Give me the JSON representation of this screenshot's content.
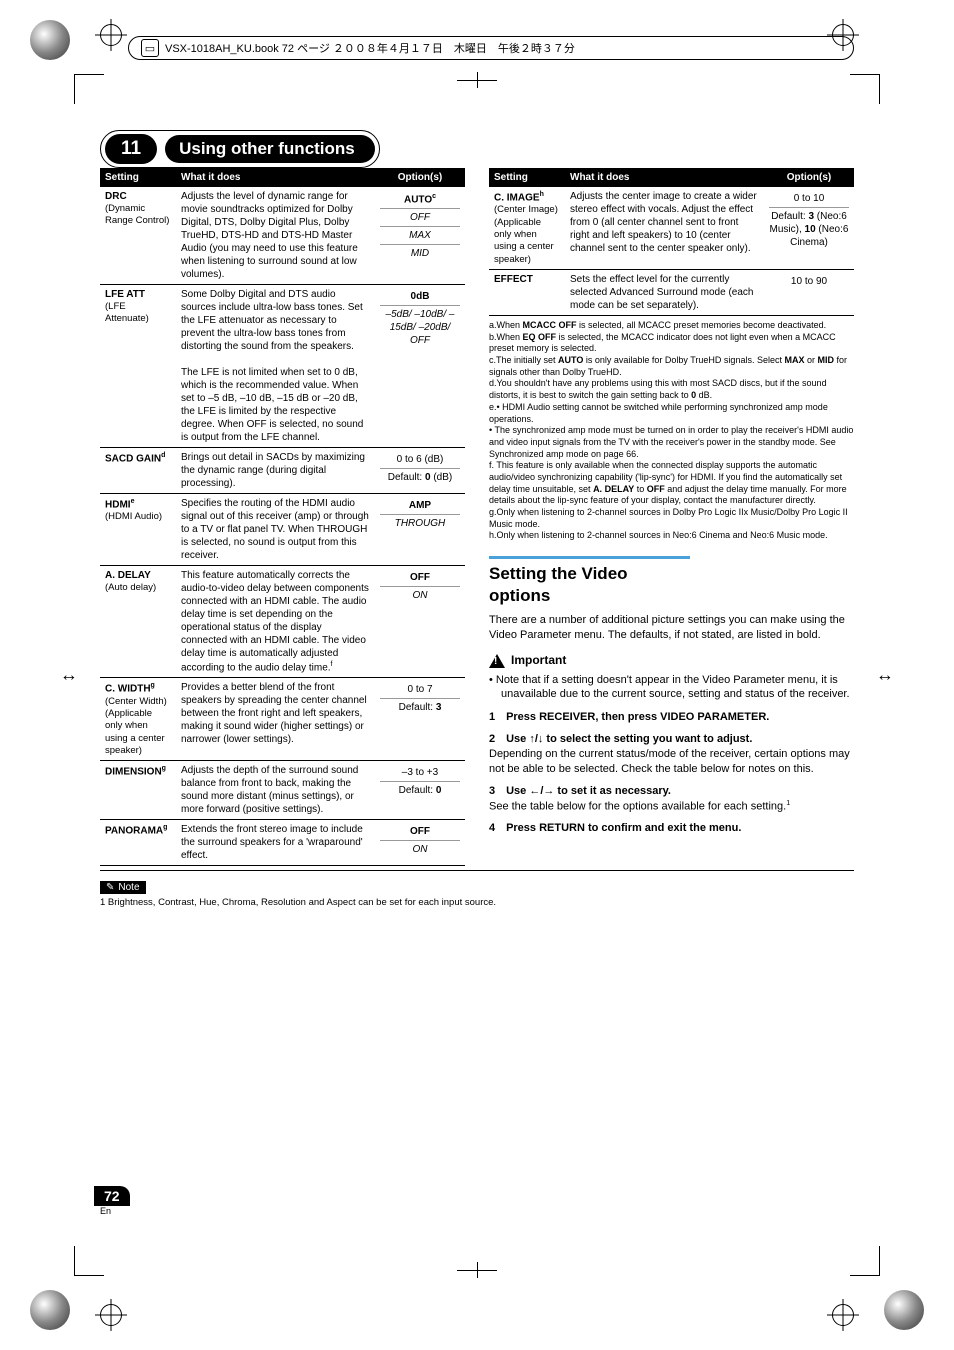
{
  "meta": {
    "book_header": "VSX-1018AH_KU.book  72 ページ  ２００８年４月１７日　木曜日　午後２時３７分",
    "chapter_num": "11",
    "chapter_title": "Using other functions",
    "page_num": "72",
    "page_lang": "En"
  },
  "table_headers": {
    "setting": "Setting",
    "what": "What it does",
    "options": "Option(s)"
  },
  "left_rows": [
    {
      "setting": "DRC",
      "sub": "(Dynamic Range Control)",
      "desc": "Adjusts the level of dynamic range for movie soundtracks optimized for Dolby Digital, DTS, Dolby Digital Plus, Dolby TrueHD, DTS-HD and DTS-HD Master Audio (you may need to use this feature when listening to surround sound at low volumes).",
      "opts": [
        {
          "t": "AUTO",
          "sup": "c",
          "bold": true
        },
        {
          "t": "OFF",
          "italic": true
        },
        {
          "t": "MAX",
          "italic": true
        },
        {
          "t": "MID",
          "italic": true
        }
      ]
    },
    {
      "setting": "LFE ATT",
      "sub": "(LFE Attenuate)",
      "desc": "Some Dolby Digital and DTS audio sources include ultra-low bass tones. Set the LFE attenuator as necessary to prevent the ultra-low bass tones from distorting the sound from the speakers.\nThe LFE is not limited when set to 0 dB, which is the recommended value. When set to –5 dB, –10 dB, –15 dB or –20 dB, the LFE is limited by the respective degree. When OFF is selected, no sound is output from the LFE channel.",
      "opts": [
        {
          "t": "0dB",
          "bold": true
        },
        {
          "t": "–5dB/ –10dB/ –15dB/ –20dB/ OFF",
          "italic": true
        }
      ]
    },
    {
      "setting": "SACD GAIN",
      "sup": "d",
      "sub": "",
      "desc": "Brings out detail in SACDs by maximizing the dynamic range (during digital processing).",
      "opts": [
        {
          "t": "0 to 6 (dB)"
        },
        {
          "t": "Default: 0 (dB)",
          "boldpart": "0"
        }
      ]
    },
    {
      "setting": "HDMI",
      "sup": "e",
      "sub": "(HDMI Audio)",
      "desc": "Specifies the routing of the HDMI audio signal out of this receiver (amp) or through to a TV or flat panel TV. When THROUGH is selected, no sound is output from this receiver.",
      "opts": [
        {
          "t": "AMP",
          "bold": true
        },
        {
          "t": "THROUGH",
          "italic": true
        }
      ]
    },
    {
      "setting": "A. DELAY",
      "sub": "(Auto delay)",
      "desc": "This feature automatically corrects the audio-to-video delay between components connected with an HDMI cable. The audio delay time is set depending on the operational status of the display connected with an HDMI cable. The video delay time is automatically adjusted according to the audio delay time.",
      "desc_sup": "f",
      "opts": [
        {
          "t": "OFF",
          "bold": true
        },
        {
          "t": "ON",
          "italic": true
        }
      ]
    },
    {
      "setting": "C. WIDTH",
      "sup": "g",
      "sub": "(Center Width) (Applicable only when using a center speaker)",
      "desc": "Provides a better blend of the front speakers by spreading the center channel between the front right and left speakers, making it sound wider (higher settings) or narrower (lower settings).",
      "opts": [
        {
          "t": "0 to 7"
        },
        {
          "t": "Default: 3",
          "boldpart": "3"
        }
      ]
    },
    {
      "setting": "DIMENSION",
      "sup": "g",
      "sub": "",
      "desc": "Adjusts the depth of the surround sound balance from front to back, making the sound more distant (minus settings), or more forward (positive settings).",
      "opts": [
        {
          "t": "–3 to +3"
        },
        {
          "t": "Default: 0",
          "boldpart": "0"
        }
      ]
    },
    {
      "setting": "PANORAMA",
      "sup": "g",
      "sub": "",
      "desc": "Extends the front stereo image to include the surround speakers for a 'wraparound' effect.",
      "opts": [
        {
          "t": "OFF",
          "bold": true
        },
        {
          "t": "ON",
          "italic": true
        }
      ]
    }
  ],
  "right_rows": [
    {
      "setting": "C. IMAGE",
      "sup": "h",
      "sub": "(Center Image) (Applicable only when using a center speaker)",
      "desc": "Adjusts the center image to create a wider stereo effect with vocals. Adjust the effect from 0 (all center channel sent to front right and left speakers) to 10 (center channel sent to the center speaker only).",
      "opts": [
        {
          "t": "0 to 10"
        },
        {
          "t": "Default: 3 (Neo:6 Music), 10 (Neo:6 Cinema)",
          "boldparts": [
            "3",
            "10"
          ]
        }
      ]
    },
    {
      "setting": "EFFECT",
      "sub": "",
      "desc": "Sets the effect level for the currently selected Advanced Surround mode (each mode can be set separately).",
      "opts": [
        {
          "t": "10 to 90"
        }
      ]
    }
  ],
  "footnotes": [
    "a.When MCACC OFF is selected, all MCACC preset memories become deactivated.",
    "b.When EQ OFF is selected, the MCACC indicator does not light even when a MCACC preset memory is selected.",
    "c.The initially set AUTO is only available for Dolby TrueHD signals. Select MAX or MID for signals other than Dolby TrueHD.",
    "d.You shouldn't have any problems using this with most SACD discs, but if the sound distorts, it is best to switch the gain setting back to 0 dB.",
    "e.• HDMI Audio setting cannot be switched while performing synchronized amp mode operations.",
    "  • The synchronized amp mode must be turned on in order to play the receiver's HDMI audio and video input signals from the TV with the receiver's power in the standby mode. See Synchronized amp mode on page 66.",
    "f. This feature is only available when the connected display supports the automatic audio/video synchronizing capability ('lip-sync') for HDMI. If you find the automatically set delay time unsuitable, set A. DELAY to OFF and adjust the delay time manually. For more details about the lip-sync feature of your display, contact the manufacturer directly.",
    "g.Only when listening to 2-channel sources in Dolby Pro Logic IIx Music/Dolby Pro Logic II Music mode.",
    "h.Only when listening to 2-channel sources in Neo:6 Cinema and Neo:6 Music mode."
  ],
  "video": {
    "heading": "Setting the Video options",
    "intro": "There are a number of additional picture settings you can make using the Video Parameter menu. The defaults, if not stated, are listed in bold.",
    "important_label": "Important",
    "bullet": "Note that if a setting doesn't appear in the Video Parameter menu, it is unavailable due to the current source, setting and status of the receiver.",
    "steps": [
      {
        "n": "1",
        "bold": "Press RECEIVER, then press VIDEO PARAMETER."
      },
      {
        "n": "2",
        "bold": "Use ↑/↓ to select the setting you want to adjust.",
        "body": "Depending on the current status/mode of the receiver, certain options may not be able to be selected. Check the table below for notes on this."
      },
      {
        "n": "3",
        "bold": "Use ←/→ to set it as necessary.",
        "body": "See the table below for the options available for each setting.",
        "sup": "1"
      },
      {
        "n": "4",
        "bold": "Press RETURN to confirm and exit the menu."
      }
    ]
  },
  "note": {
    "label": "Note",
    "text": "1 Brightness, Contrast, Hue, Chroma, Resolution and Aspect can be set for each input source."
  },
  "colors": {
    "accent": "#4aa0d8",
    "black": "#000000",
    "white": "#ffffff"
  }
}
